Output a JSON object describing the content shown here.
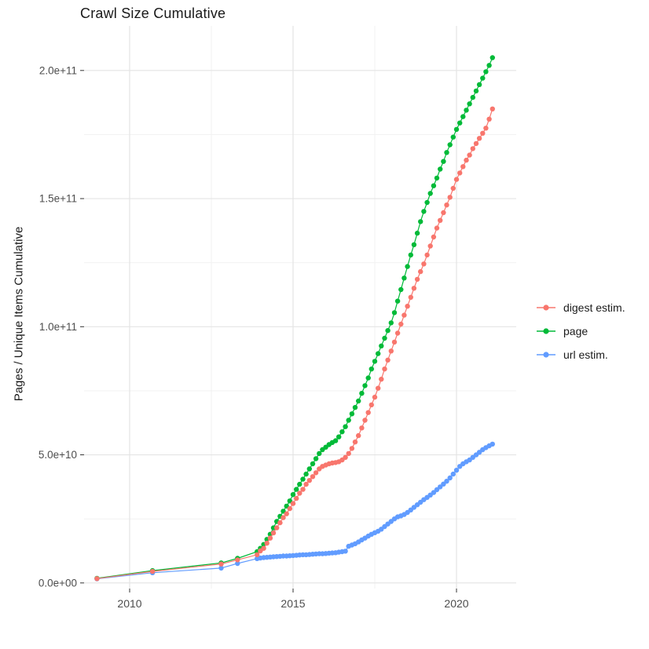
{
  "chart_data": {
    "type": "line",
    "title": "Crawl Size Cumulative",
    "xlabel": "",
    "ylabel": "Pages / Unique Items Cumulative",
    "value_unit_note": "y values stored in billions (1e9); tick labels shown in scientific notation",
    "xlim": [
      2008.606,
      2021.827
    ],
    "ylim": [
      -2.2,
      217.4
    ],
    "x_ticks": [
      {
        "value": 2010,
        "label": "2010"
      },
      {
        "value": 2015,
        "label": "2015"
      },
      {
        "value": 2020,
        "label": "2020"
      }
    ],
    "y_ticks": [
      {
        "value": 0,
        "label": "0.0e+00"
      },
      {
        "value": 50,
        "label": "5.0e+10"
      },
      {
        "value": 100,
        "label": "1.0e+11"
      },
      {
        "value": 150,
        "label": "1.5e+11"
      },
      {
        "value": 200,
        "label": "2.0e+11"
      }
    ],
    "x_minor_gridlines": [
      2012.5,
      2017.5
    ],
    "y_minor_gridlines": [
      25,
      75,
      125,
      175
    ],
    "grid": "major and minor gridlines, light gray on white panel",
    "legend_position": "right-middle",
    "colors": {
      "background": "#FFFFFF",
      "grid_major": "#E4E4E4",
      "grid_minor": "#F1F1F1",
      "tick_mark": "#333333",
      "tick_label": "#4D4D4D",
      "text": "#1A1A1A"
    },
    "series": [
      {
        "name": "digest estim.",
        "color": "#F8766D",
        "points": [
          [
            2009.0,
            1.7
          ],
          [
            2010.7,
            4.5
          ],
          [
            2012.8,
            7.4
          ],
          [
            2013.3,
            9.0
          ],
          [
            2013.9,
            11.0
          ],
          [
            2014.0,
            12.5
          ],
          [
            2014.1,
            13.5
          ],
          [
            2014.2,
            15.5
          ],
          [
            2014.3,
            17.5
          ],
          [
            2014.4,
            19.5
          ],
          [
            2014.5,
            21.5
          ],
          [
            2014.6,
            23.5
          ],
          [
            2014.7,
            25.5
          ],
          [
            2014.8,
            27.0
          ],
          [
            2014.9,
            29.0
          ],
          [
            2015.0,
            31.0
          ],
          [
            2015.1,
            33.0
          ],
          [
            2015.2,
            35.0
          ],
          [
            2015.3,
            36.5
          ],
          [
            2015.4,
            38.5
          ],
          [
            2015.5,
            40.0
          ],
          [
            2015.6,
            41.5
          ],
          [
            2015.7,
            43.0
          ],
          [
            2015.8,
            44.5
          ],
          [
            2015.9,
            45.5
          ],
          [
            2016.0,
            46.0
          ],
          [
            2016.1,
            46.5
          ],
          [
            2016.2,
            46.8
          ],
          [
            2016.3,
            47.0
          ],
          [
            2016.4,
            47.3
          ],
          [
            2016.5,
            48.0
          ],
          [
            2016.6,
            49.0
          ],
          [
            2016.7,
            50.5
          ],
          [
            2016.8,
            52.5
          ],
          [
            2016.9,
            55.0
          ],
          [
            2017.0,
            57.5
          ],
          [
            2017.1,
            60.5
          ],
          [
            2017.2,
            63.5
          ],
          [
            2017.3,
            66.5
          ],
          [
            2017.4,
            69.5
          ],
          [
            2017.5,
            72.5
          ],
          [
            2017.6,
            76.0
          ],
          [
            2017.7,
            79.5
          ],
          [
            2017.8,
            83.5
          ],
          [
            2017.9,
            87.0
          ],
          [
            2018.0,
            90.5
          ],
          [
            2018.1,
            94.0
          ],
          [
            2018.2,
            97.5
          ],
          [
            2018.3,
            101.0
          ],
          [
            2018.4,
            104.5
          ],
          [
            2018.5,
            108.0
          ],
          [
            2018.6,
            111.5
          ],
          [
            2018.7,
            115.0
          ],
          [
            2018.8,
            118.5
          ],
          [
            2018.9,
            121.5
          ],
          [
            2019.0,
            124.5
          ],
          [
            2019.1,
            128.0
          ],
          [
            2019.2,
            131.5
          ],
          [
            2019.3,
            135.0
          ],
          [
            2019.4,
            138.5
          ],
          [
            2019.5,
            141.5
          ],
          [
            2019.6,
            144.5
          ],
          [
            2019.7,
            147.5
          ],
          [
            2019.8,
            150.5
          ],
          [
            2019.9,
            154.0
          ],
          [
            2020.0,
            157.5
          ],
          [
            2020.1,
            160.0
          ],
          [
            2020.2,
            162.5
          ],
          [
            2020.3,
            165.0
          ],
          [
            2020.4,
            167.0
          ],
          [
            2020.5,
            169.5
          ],
          [
            2020.6,
            171.5
          ],
          [
            2020.7,
            173.5
          ],
          [
            2020.8,
            175.5
          ],
          [
            2020.9,
            177.5
          ],
          [
            2021.0,
            181.0
          ],
          [
            2021.1,
            185.0
          ]
        ]
      },
      {
        "name": "page",
        "color": "#00BA38",
        "points": [
          [
            2009.0,
            1.8
          ],
          [
            2010.7,
            4.8
          ],
          [
            2012.8,
            7.8
          ],
          [
            2013.3,
            9.6
          ],
          [
            2013.9,
            12.2
          ],
          [
            2014.0,
            13.5
          ],
          [
            2014.1,
            15.0
          ],
          [
            2014.2,
            17.0
          ],
          [
            2014.3,
            19.0
          ],
          [
            2014.4,
            21.5
          ],
          [
            2014.5,
            24.0
          ],
          [
            2014.6,
            26.0
          ],
          [
            2014.7,
            28.0
          ],
          [
            2014.8,
            30.0
          ],
          [
            2014.9,
            32.0
          ],
          [
            2015.0,
            34.5
          ],
          [
            2015.1,
            36.5
          ],
          [
            2015.2,
            38.5
          ],
          [
            2015.3,
            40.5
          ],
          [
            2015.4,
            42.5
          ],
          [
            2015.5,
            44.5
          ],
          [
            2015.6,
            46.5
          ],
          [
            2015.7,
            48.5
          ],
          [
            2015.8,
            50.5
          ],
          [
            2015.9,
            52.0
          ],
          [
            2016.0,
            53.0
          ],
          [
            2016.1,
            54.0
          ],
          [
            2016.2,
            54.8
          ],
          [
            2016.3,
            55.5
          ],
          [
            2016.4,
            57.0
          ],
          [
            2016.5,
            59.0
          ],
          [
            2016.6,
            61.0
          ],
          [
            2016.7,
            63.5
          ],
          [
            2016.8,
            66.0
          ],
          [
            2016.9,
            68.5
          ],
          [
            2017.0,
            71.0
          ],
          [
            2017.1,
            74.0
          ],
          [
            2017.2,
            77.0
          ],
          [
            2017.3,
            80.0
          ],
          [
            2017.4,
            83.5
          ],
          [
            2017.5,
            86.5
          ],
          [
            2017.6,
            89.5
          ],
          [
            2017.7,
            92.5
          ],
          [
            2017.8,
            95.5
          ],
          [
            2017.9,
            98.5
          ],
          [
            2018.0,
            101.5
          ],
          [
            2018.1,
            105.5
          ],
          [
            2018.2,
            110.0
          ],
          [
            2018.3,
            114.5
          ],
          [
            2018.4,
            119.0
          ],
          [
            2018.5,
            123.5
          ],
          [
            2018.6,
            128.0
          ],
          [
            2018.7,
            132.0
          ],
          [
            2018.8,
            136.5
          ],
          [
            2018.9,
            141.0
          ],
          [
            2019.0,
            145.0
          ],
          [
            2019.1,
            148.5
          ],
          [
            2019.2,
            152.0
          ],
          [
            2019.3,
            155.0
          ],
          [
            2019.4,
            158.0
          ],
          [
            2019.5,
            161.5
          ],
          [
            2019.6,
            164.5
          ],
          [
            2019.7,
            168.0
          ],
          [
            2019.8,
            171.0
          ],
          [
            2019.9,
            174.0
          ],
          [
            2020.0,
            177.0
          ],
          [
            2020.1,
            179.5
          ],
          [
            2020.2,
            182.0
          ],
          [
            2020.3,
            184.5
          ],
          [
            2020.4,
            187.0
          ],
          [
            2020.5,
            189.5
          ],
          [
            2020.6,
            192.0
          ],
          [
            2020.7,
            194.5
          ],
          [
            2020.8,
            197.0
          ],
          [
            2020.9,
            199.5
          ],
          [
            2021.0,
            202.0
          ],
          [
            2021.1,
            205.0
          ]
        ]
      },
      {
        "name": "url estim.",
        "color": "#619CFF",
        "points": [
          [
            2009.0,
            1.6
          ],
          [
            2010.7,
            4.0
          ],
          [
            2012.8,
            5.8
          ],
          [
            2013.3,
            7.6
          ],
          [
            2013.9,
            9.5
          ],
          [
            2014.0,
            9.7
          ],
          [
            2014.1,
            9.9
          ],
          [
            2014.2,
            10.0
          ],
          [
            2014.3,
            10.1
          ],
          [
            2014.4,
            10.2
          ],
          [
            2014.5,
            10.3
          ],
          [
            2014.6,
            10.4
          ],
          [
            2014.7,
            10.5
          ],
          [
            2014.8,
            10.5
          ],
          [
            2014.9,
            10.6
          ],
          [
            2015.0,
            10.7
          ],
          [
            2015.1,
            10.8
          ],
          [
            2015.2,
            10.9
          ],
          [
            2015.3,
            11.0
          ],
          [
            2015.4,
            11.0
          ],
          [
            2015.5,
            11.1
          ],
          [
            2015.6,
            11.2
          ],
          [
            2015.7,
            11.3
          ],
          [
            2015.8,
            11.4
          ],
          [
            2015.9,
            11.4
          ],
          [
            2016.0,
            11.5
          ],
          [
            2016.1,
            11.6
          ],
          [
            2016.2,
            11.7
          ],
          [
            2016.3,
            11.8
          ],
          [
            2016.4,
            12.0
          ],
          [
            2016.5,
            12.2
          ],
          [
            2016.6,
            12.4
          ],
          [
            2016.7,
            14.3
          ],
          [
            2016.8,
            14.8
          ],
          [
            2016.9,
            15.3
          ],
          [
            2017.0,
            16.0
          ],
          [
            2017.1,
            16.8
          ],
          [
            2017.2,
            17.5
          ],
          [
            2017.3,
            18.3
          ],
          [
            2017.4,
            19.0
          ],
          [
            2017.5,
            19.6
          ],
          [
            2017.6,
            20.2
          ],
          [
            2017.7,
            21.0
          ],
          [
            2017.8,
            22.0
          ],
          [
            2017.9,
            23.0
          ],
          [
            2018.0,
            24.0
          ],
          [
            2018.1,
            25.0
          ],
          [
            2018.2,
            25.8
          ],
          [
            2018.3,
            26.2
          ],
          [
            2018.4,
            26.7
          ],
          [
            2018.5,
            27.5
          ],
          [
            2018.6,
            28.5
          ],
          [
            2018.7,
            29.5
          ],
          [
            2018.8,
            30.5
          ],
          [
            2018.9,
            31.5
          ],
          [
            2019.0,
            32.5
          ],
          [
            2019.1,
            33.4
          ],
          [
            2019.2,
            34.3
          ],
          [
            2019.3,
            35.3
          ],
          [
            2019.4,
            36.4
          ],
          [
            2019.5,
            37.5
          ],
          [
            2019.6,
            38.6
          ],
          [
            2019.7,
            39.7
          ],
          [
            2019.8,
            41.0
          ],
          [
            2019.9,
            42.5
          ],
          [
            2020.0,
            44.0
          ],
          [
            2020.1,
            45.5
          ],
          [
            2020.2,
            46.5
          ],
          [
            2020.3,
            47.3
          ],
          [
            2020.4,
            48.0
          ],
          [
            2020.5,
            49.0
          ],
          [
            2020.6,
            50.0
          ],
          [
            2020.7,
            51.0
          ],
          [
            2020.8,
            52.0
          ],
          [
            2020.9,
            52.8
          ],
          [
            2021.0,
            53.5
          ],
          [
            2021.1,
            54.2
          ]
        ]
      }
    ]
  }
}
